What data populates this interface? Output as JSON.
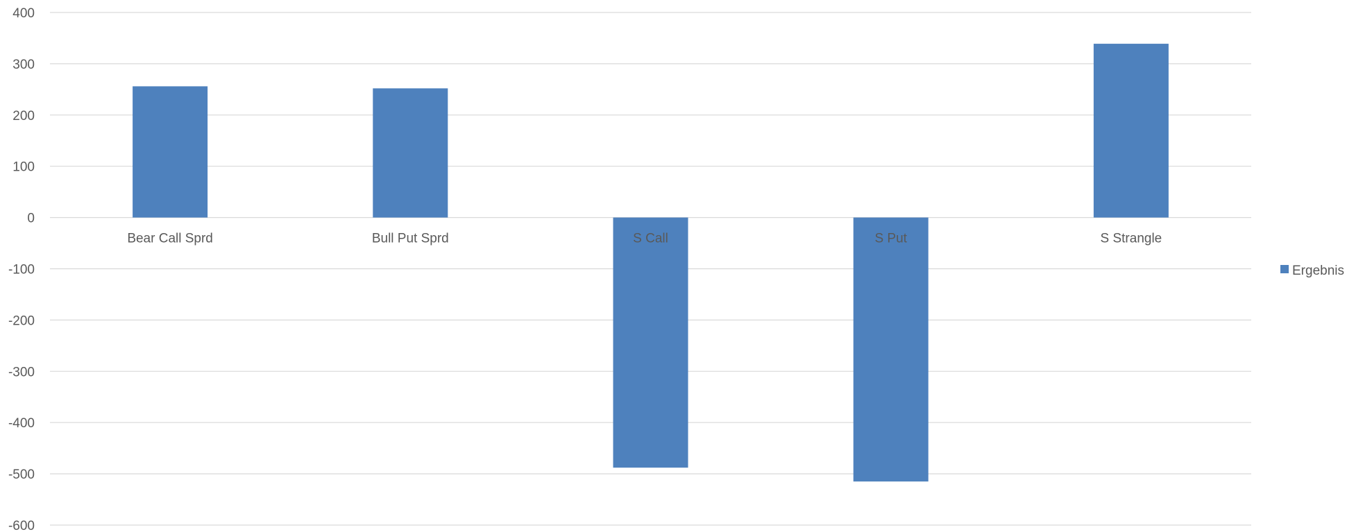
{
  "chart_data": {
    "type": "bar",
    "title": "",
    "xlabel": "",
    "ylabel": "",
    "categories": [
      "Bear Call Sprd",
      "Bull Put Sprd",
      "S Call",
      "S Put",
      "S Strangle"
    ],
    "series": [
      {
        "name": "Ergebnis",
        "values": [
          256,
          252,
          -488,
          -515,
          339
        ],
        "color": "#4e81bd"
      }
    ],
    "ylim": [
      -600,
      400
    ],
    "yticks": [
      400,
      300,
      200,
      100,
      0,
      -100,
      -200,
      -300,
      -400,
      -500,
      -600
    ],
    "grid": true,
    "legend": "right"
  }
}
